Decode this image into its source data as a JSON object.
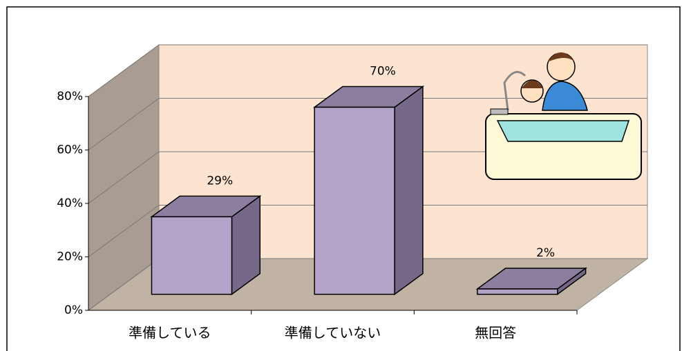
{
  "chart_data": {
    "type": "bar3d",
    "categories": [
      "準備している",
      "準備していない",
      "無回答"
    ],
    "values": [
      29,
      70,
      2
    ],
    "value_labels": [
      "29%",
      "70%",
      "2%"
    ],
    "ylim": [
      0,
      80
    ],
    "yticks": [
      {
        "value": 0,
        "label": "0%"
      },
      {
        "value": 20,
        "label": "20%"
      },
      {
        "value": 40,
        "label": "40%"
      },
      {
        "value": 60,
        "label": "60%"
      },
      {
        "value": 80,
        "label": "80%"
      }
    ],
    "grid": true,
    "colors": {
      "front": "#b3a3c9",
      "side": "#756889",
      "top": "#8c7e9f",
      "back_wall": "#fde4d0",
      "side_wall": "#a99d93",
      "floor": "#c1b3a4"
    }
  }
}
